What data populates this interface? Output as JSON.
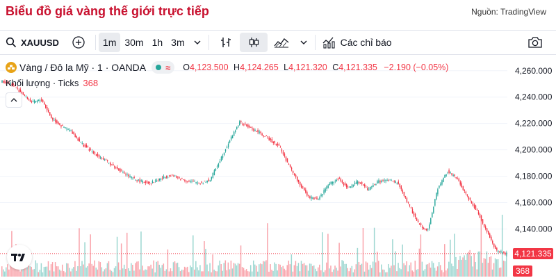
{
  "page": {
    "title": "Biểu đồ giá vàng thế giới trực tiếp",
    "source_label": "Nguồn: TradingView"
  },
  "toolbar": {
    "symbol": "XAUUSD",
    "intervals": [
      "1m",
      "30m",
      "1h",
      "3m"
    ],
    "active_interval": "1m",
    "indicators_label": "Các chỉ báo"
  },
  "legend": {
    "instrument": "Vàng / Đô la Mỹ · 1 · OANDA",
    "ohlc": {
      "o_key": "O",
      "o": "4,123.500",
      "h_key": "H",
      "h": "4,124.265",
      "l_key": "L",
      "l": "4,121.320",
      "c_key": "C",
      "c": "4,121.335",
      "change": "−2.190 (−0.05%)"
    },
    "volume_label": "Khối lượng · Ticks",
    "volume_value": "368"
  },
  "price_axis": {
    "ticks": [
      "4,260.000",
      "4,240.000",
      "4,220.000",
      "4,200.000",
      "4,180.000",
      "4,160.000",
      "4,140.000"
    ],
    "last_price": "4,121.335",
    "last_volume": "368"
  },
  "colors": {
    "up": "#26a69a",
    "down": "#f23645",
    "title": "#c8102e"
  },
  "chart_data": {
    "type": "line",
    "ylim": [
      4116,
      4262
    ],
    "path": [
      4252,
      4250,
      4243,
      4236,
      4238,
      4224,
      4218,
      4214,
      4205,
      4199,
      4194,
      4189,
      4184,
      4179,
      4176,
      4175,
      4178,
      4181,
      4178,
      4176,
      4175,
      4177,
      4192,
      4207,
      4221,
      4217,
      4213,
      4208,
      4203,
      4188,
      4175,
      4164,
      4163,
      4174,
      4178,
      4171,
      4176,
      4170,
      4176,
      4177,
      4175,
      4160,
      4145,
      4138,
      4170,
      4184,
      4178,
      4165,
      4154,
      4138,
      4123,
      4121
    ]
  }
}
